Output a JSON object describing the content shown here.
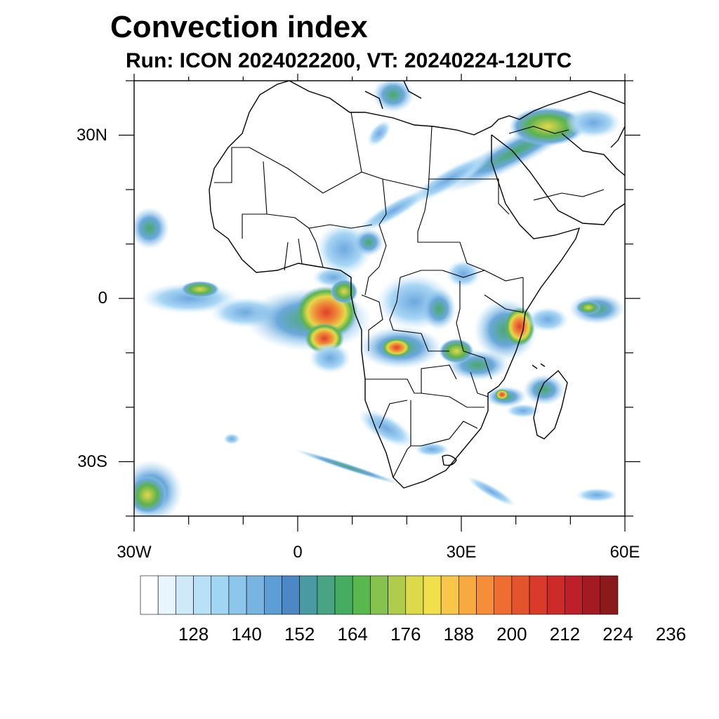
{
  "title": "Convection index",
  "subtitle": "Run: ICON 2024022200,  VT: 20240224-12UTC",
  "map": {
    "lon_range": [
      -30,
      60
    ],
    "lat_range": [
      -40,
      40
    ],
    "lat_labels": [
      {
        "lat": 30,
        "text": "30N"
      },
      {
        "lat": 0,
        "text": "0"
      },
      {
        "lat": -30,
        "text": "30S"
      }
    ],
    "lon_labels": [
      {
        "lon": -30,
        "text": "30W"
      },
      {
        "lon": 0,
        "text": "0"
      },
      {
        "lon": 30,
        "text": "30E"
      },
      {
        "lon": 60,
        "text": "60E"
      }
    ]
  },
  "colorbar": {
    "colors": [
      "#ffffff",
      "#e8f5fc",
      "#cfe9f8",
      "#b8e0f6",
      "#a0d6f4",
      "#8cc6ea",
      "#78b4e2",
      "#5e9ed6",
      "#4c88c4",
      "#4a9aa4",
      "#48a482",
      "#46ac62",
      "#58b84e",
      "#86c24e",
      "#b0cc4c",
      "#dcd94a",
      "#f1e04c",
      "#f8c64a",
      "#f7aa40",
      "#f48e38",
      "#ef6c32",
      "#e4542c",
      "#da3a2a",
      "#cd2a2a",
      "#bd2028",
      "#a41a22",
      "#8a1a1c"
    ],
    "labels": [
      "128",
      "140",
      "152",
      "164",
      "176",
      "188",
      "200",
      "212",
      "224",
      "236"
    ]
  }
}
